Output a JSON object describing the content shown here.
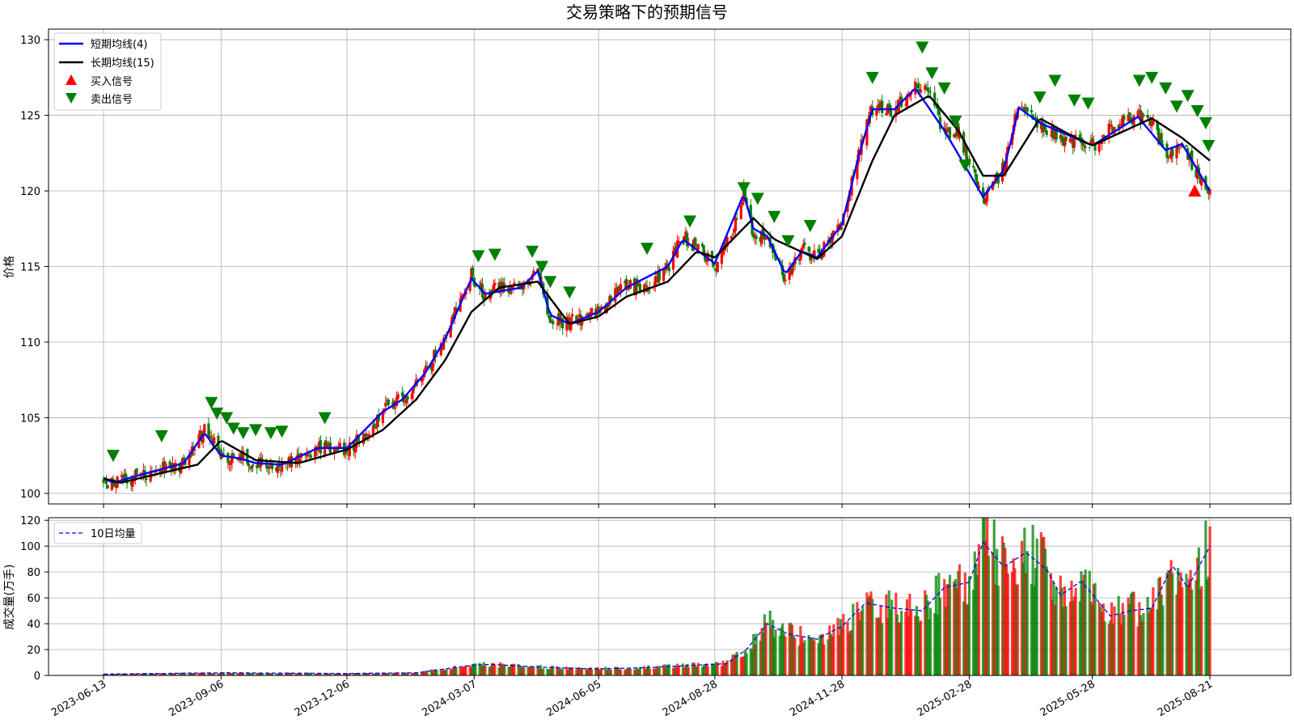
{
  "colors": {
    "up": "#ff0000",
    "down": "#008000",
    "short_ma": "#0000ff",
    "long_ma": "#000000",
    "buy": "#ff0000",
    "sell": "#008000",
    "vol_ma": "#0000ff",
    "grid": "#b0b0b0"
  },
  "chart_data": [
    {
      "type": "candlestick",
      "title": "交易策略下的预期信号",
      "ylabel": "价格",
      "ylim": [
        99.3,
        130.7
      ],
      "yticks": [
        100,
        105,
        110,
        115,
        120,
        125,
        130
      ],
      "grid": true,
      "legend_position": "top-left",
      "legend": [
        {
          "label": "短期均线(4)",
          "kind": "line",
          "color": "#0000ff"
        },
        {
          "label": "长期均线(15)",
          "kind": "line",
          "color": "#000000"
        },
        {
          "label": "买入信号",
          "kind": "triangle-up",
          "color": "#ff0000"
        },
        {
          "label": "卖出信号",
          "kind": "triangle-down",
          "color": "#008000"
        }
      ],
      "price_anchors": [
        [
          "2023-06-13",
          100.8
        ],
        [
          "2023-06-20",
          100.6
        ],
        [
          "2023-07-05",
          101.1
        ],
        [
          "2023-07-25",
          101.6
        ],
        [
          "2023-08-10",
          102.0
        ],
        [
          "2023-08-25",
          104.2
        ],
        [
          "2023-09-01",
          103.5
        ],
        [
          "2023-09-06",
          102.2
        ],
        [
          "2023-09-20",
          102.5
        ],
        [
          "2023-10-01",
          101.9
        ],
        [
          "2023-10-20",
          101.9
        ],
        [
          "2023-11-01",
          102.3
        ],
        [
          "2023-11-15",
          103.0
        ],
        [
          "2023-11-25",
          102.8
        ],
        [
          "2023-12-06",
          103.0
        ],
        [
          "2023-12-20",
          103.8
        ],
        [
          "2024-01-01",
          105.5
        ],
        [
          "2024-01-15",
          106.3
        ],
        [
          "2024-02-01",
          108.0
        ],
        [
          "2024-02-15",
          110.3
        ],
        [
          "2024-02-25",
          112.5
        ],
        [
          "2024-03-05",
          114.5
        ],
        [
          "2024-03-15",
          113.0
        ],
        [
          "2024-03-25",
          113.7
        ],
        [
          "2024-04-10",
          113.6
        ],
        [
          "2024-04-22",
          115.0
        ],
        [
          "2024-05-01",
          111.5
        ],
        [
          "2024-05-15",
          111.3
        ],
        [
          "2024-06-05",
          112.0
        ],
        [
          "2024-06-25",
          113.8
        ],
        [
          "2024-07-10",
          113.6
        ],
        [
          "2024-07-25",
          115.0
        ],
        [
          "2024-08-05",
          117.0
        ],
        [
          "2024-08-15",
          116.2
        ],
        [
          "2024-08-28",
          115.0
        ],
        [
          "2024-09-10",
          117.5
        ],
        [
          "2024-09-18",
          120.0
        ],
        [
          "2024-09-25",
          117.0
        ],
        [
          "2024-10-05",
          117.2
        ],
        [
          "2024-10-18",
          114.2
        ],
        [
          "2024-10-30",
          116.2
        ],
        [
          "2024-11-10",
          115.5
        ],
        [
          "2024-11-28",
          118.0
        ],
        [
          "2024-12-10",
          122.5
        ],
        [
          "2024-12-20",
          125.5
        ],
        [
          "2025-01-05",
          125.3
        ],
        [
          "2025-01-20",
          127.0
        ],
        [
          "2025-01-30",
          126.5
        ],
        [
          "2025-02-10",
          123.8
        ],
        [
          "2025-02-20",
          124.0
        ],
        [
          "2025-03-10",
          119.5
        ],
        [
          "2025-03-25",
          121.5
        ],
        [
          "2025-04-05",
          125.8
        ],
        [
          "2025-04-20",
          124.5
        ],
        [
          "2025-05-05",
          123.5
        ],
        [
          "2025-05-28",
          123.0
        ],
        [
          "2025-06-15",
          124.5
        ],
        [
          "2025-06-30",
          125.0
        ],
        [
          "2025-07-10",
          124.5
        ],
        [
          "2025-07-20",
          122.5
        ],
        [
          "2025-08-01",
          123.2
        ],
        [
          "2025-08-10",
          121.5
        ],
        [
          "2025-08-21",
          119.8
        ]
      ],
      "short_ma_anchors": [
        [
          "2023-06-13",
          101.0
        ],
        [
          "2023-06-20",
          100.7
        ],
        [
          "2023-07-05",
          101.1
        ],
        [
          "2023-07-25",
          101.6
        ],
        [
          "2023-08-10",
          102.0
        ],
        [
          "2023-08-25",
          104.0
        ],
        [
          "2023-09-06",
          102.5
        ],
        [
          "2023-09-20",
          102.3
        ],
        [
          "2023-10-01",
          102.0
        ],
        [
          "2023-10-20",
          101.9
        ],
        [
          "2023-11-15",
          103.0
        ],
        [
          "2023-12-06",
          103.0
        ],
        [
          "2024-01-01",
          105.4
        ],
        [
          "2024-01-15",
          106.2
        ],
        [
          "2024-02-01",
          108.0
        ],
        [
          "2024-02-15",
          110.2
        ],
        [
          "2024-03-05",
          114.2
        ],
        [
          "2024-03-15",
          113.2
        ],
        [
          "2024-04-10",
          113.6
        ],
        [
          "2024-04-22",
          114.7
        ],
        [
          "2024-05-01",
          111.8
        ],
        [
          "2024-05-15",
          111.2
        ],
        [
          "2024-06-05",
          112.0
        ],
        [
          "2024-06-25",
          113.6
        ],
        [
          "2024-07-25",
          115.0
        ],
        [
          "2024-08-05",
          116.8
        ],
        [
          "2024-08-28",
          115.2
        ],
        [
          "2024-09-18",
          119.8
        ],
        [
          "2024-09-25",
          117.5
        ],
        [
          "2024-10-05",
          117.0
        ],
        [
          "2024-10-18",
          114.5
        ],
        [
          "2024-10-30",
          116.0
        ],
        [
          "2024-11-10",
          115.6
        ],
        [
          "2024-11-28",
          117.8
        ],
        [
          "2024-12-10",
          122.3
        ],
        [
          "2024-12-20",
          125.4
        ],
        [
          "2025-01-05",
          125.4
        ],
        [
          "2025-01-20",
          126.8
        ],
        [
          "2025-02-10",
          124.0
        ],
        [
          "2025-03-10",
          119.6
        ],
        [
          "2025-03-25",
          121.4
        ],
        [
          "2025-04-05",
          125.5
        ],
        [
          "2025-04-20",
          124.5
        ],
        [
          "2025-05-28",
          123.0
        ],
        [
          "2025-06-30",
          124.9
        ],
        [
          "2025-07-20",
          122.7
        ],
        [
          "2025-08-01",
          123.1
        ],
        [
          "2025-08-21",
          120.0
        ]
      ],
      "long_ma_anchors": [
        [
          "2023-06-13",
          101.0
        ],
        [
          "2023-06-25",
          100.7
        ],
        [
          "2023-08-20",
          101.9
        ],
        [
          "2023-09-06",
          103.5
        ],
        [
          "2023-10-01",
          102.2
        ],
        [
          "2023-11-01",
          102.0
        ],
        [
          "2023-12-06",
          102.9
        ],
        [
          "2024-01-01",
          104.2
        ],
        [
          "2024-01-25",
          106.2
        ],
        [
          "2024-02-15",
          108.8
        ],
        [
          "2024-03-05",
          112.0
        ],
        [
          "2024-03-25",
          113.6
        ],
        [
          "2024-04-22",
          114.0
        ],
        [
          "2024-05-15",
          111.2
        ],
        [
          "2024-06-05",
          111.7
        ],
        [
          "2024-06-25",
          113.0
        ],
        [
          "2024-07-25",
          114.0
        ],
        [
          "2024-08-15",
          116.0
        ],
        [
          "2024-08-28",
          115.6
        ],
        [
          "2024-09-25",
          118.2
        ],
        [
          "2024-10-10",
          116.8
        ],
        [
          "2024-11-10",
          115.5
        ],
        [
          "2024-11-28",
          117.0
        ],
        [
          "2024-12-20",
          122.0
        ],
        [
          "2025-01-05",
          125.0
        ],
        [
          "2025-01-30",
          126.3
        ],
        [
          "2025-02-20",
          124.0
        ],
        [
          "2025-03-10",
          121.0
        ],
        [
          "2025-03-25",
          121.0
        ],
        [
          "2025-04-20",
          124.8
        ],
        [
          "2025-05-10",
          123.8
        ],
        [
          "2025-05-28",
          123.0
        ],
        [
          "2025-07-10",
          124.8
        ],
        [
          "2025-08-01",
          123.5
        ],
        [
          "2025-08-21",
          122.0
        ]
      ],
      "buy_signals": [
        [
          "2025-08-10",
          120.0
        ]
      ],
      "sell_signals": [
        [
          "2023-06-20",
          102.5
        ],
        [
          "2023-07-25",
          103.8
        ],
        [
          "2023-08-30",
          106.0
        ],
        [
          "2023-09-03",
          105.3
        ],
        [
          "2023-09-10",
          105.0
        ],
        [
          "2023-09-15",
          104.3
        ],
        [
          "2023-09-22",
          104.0
        ],
        [
          "2023-10-01",
          104.2
        ],
        [
          "2023-10-12",
          104.0
        ],
        [
          "2023-10-20",
          104.1
        ],
        [
          "2023-11-20",
          105.0
        ],
        [
          "2024-03-10",
          115.7
        ],
        [
          "2024-03-22",
          115.8
        ],
        [
          "2024-04-18",
          116.0
        ],
        [
          "2024-04-25",
          115.0
        ],
        [
          "2024-05-01",
          114.0
        ],
        [
          "2024-05-15",
          113.3
        ],
        [
          "2024-07-10",
          116.2
        ],
        [
          "2024-08-10",
          118.0
        ],
        [
          "2024-09-18",
          120.2
        ],
        [
          "2024-09-28",
          119.5
        ],
        [
          "2024-10-10",
          118.3
        ],
        [
          "2024-10-20",
          116.7
        ],
        [
          "2024-11-05",
          117.7
        ],
        [
          "2024-12-20",
          127.5
        ],
        [
          "2025-01-25",
          129.5
        ],
        [
          "2025-02-01",
          127.8
        ],
        [
          "2025-02-10",
          126.8
        ],
        [
          "2025-02-18",
          124.6
        ],
        [
          "2025-02-25",
          121.7
        ],
        [
          "2025-04-20",
          126.2
        ],
        [
          "2025-05-01",
          127.3
        ],
        [
          "2025-05-15",
          126.0
        ],
        [
          "2025-05-25",
          125.8
        ],
        [
          "2025-07-01",
          127.3
        ],
        [
          "2025-07-10",
          127.5
        ],
        [
          "2025-07-20",
          126.8
        ],
        [
          "2025-07-28",
          125.6
        ],
        [
          "2025-08-05",
          126.3
        ],
        [
          "2025-08-12",
          125.3
        ],
        [
          "2025-08-18",
          124.5
        ],
        [
          "2025-08-20",
          123.0
        ]
      ]
    },
    {
      "type": "bar",
      "ylabel": "成交量(万手)",
      "ylim": [
        0,
        122
      ],
      "yticks": [
        0,
        20,
        40,
        60,
        80,
        100,
        120
      ],
      "grid": true,
      "legend_position": "top-left",
      "legend": [
        {
          "label": "10日均量",
          "kind": "dashed-line",
          "color": "#0000ff"
        }
      ],
      "x_start": "2023-06-13",
      "x_end": "2025-08-21",
      "xticks": [
        "2023-06-13",
        "2023-09-06",
        "2023-12-06",
        "2024-03-07",
        "2024-06-05",
        "2024-08-28",
        "2024-11-28",
        "2025-02-28",
        "2025-05-28",
        "2025-08-21"
      ],
      "volume_ma_anchors": [
        [
          "2023-06-13",
          1.0
        ],
        [
          "2023-09-06",
          2.0
        ],
        [
          "2023-12-06",
          1.5
        ],
        [
          "2024-01-25",
          2.0
        ],
        [
          "2024-03-07",
          8.0
        ],
        [
          "2024-03-20",
          8.5
        ],
        [
          "2024-05-01",
          6.0
        ],
        [
          "2024-06-05",
          5.0
        ],
        [
          "2024-07-10",
          6.0
        ],
        [
          "2024-08-15",
          8.0
        ],
        [
          "2024-09-05",
          9.0
        ],
        [
          "2024-09-20",
          20.0
        ],
        [
          "2024-10-05",
          40.0
        ],
        [
          "2024-10-20",
          32.0
        ],
        [
          "2024-11-10",
          28.0
        ],
        [
          "2024-11-28",
          38.0
        ],
        [
          "2024-12-15",
          56.0
        ],
        [
          "2025-01-05",
          52.0
        ],
        [
          "2025-01-25",
          50.0
        ],
        [
          "2025-02-10",
          68.0
        ],
        [
          "2025-02-28",
          72.0
        ],
        [
          "2025-03-10",
          103.0
        ],
        [
          "2025-03-25",
          84.0
        ],
        [
          "2025-04-10",
          95.0
        ],
        [
          "2025-04-25",
          82.0
        ],
        [
          "2025-05-05",
          62.0
        ],
        [
          "2025-05-20",
          73.0
        ],
        [
          "2025-06-10",
          46.0
        ],
        [
          "2025-06-25",
          50.0
        ],
        [
          "2025-07-10",
          52.0
        ],
        [
          "2025-07-25",
          85.0
        ],
        [
          "2025-08-05",
          68.0
        ],
        [
          "2025-08-21",
          100.0
        ]
      ]
    }
  ]
}
